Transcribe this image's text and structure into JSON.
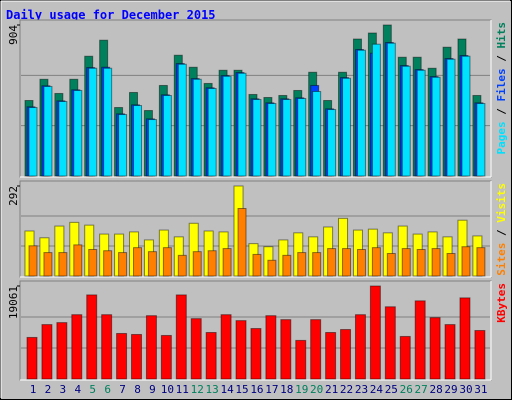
{
  "chart_data": [
    {
      "type": "bar",
      "title": "Daily usage for December 2015",
      "legend_separator": " / ",
      "ylim": [
        0,
        904
      ],
      "yticks": [
        904
      ],
      "series": [
        {
          "name": "Hits",
          "color": "#00805c",
          "values": [
            452,
            579,
            494,
            579,
            717,
            813,
            410,
            500,
            392,
            542,
            723,
            651,
            554,
            633,
            633,
            488,
            470,
            482,
            512,
            621,
            452,
            621,
            820,
            856,
            904,
            711,
            711,
            645,
            771,
            820,
            482
          ]
        },
        {
          "name": "Files",
          "color": "#0040ff",
          "values": [
            414,
            540,
            450,
            516,
            649,
            651,
            372,
            426,
            342,
            486,
            673,
            583,
            528,
            601,
            619,
            462,
            438,
            462,
            468,
            542,
            402,
            589,
            757,
            735,
            799,
            661,
            637,
            595,
            703,
            721,
            438
          ]
        },
        {
          "name": "Pages",
          "color": "#00e0ff",
          "values": [
            410,
            536,
            446,
            512,
            645,
            645,
            368,
            422,
            338,
            482,
            669,
            579,
            524,
            597,
            615,
            458,
            434,
            458,
            464,
            506,
            398,
            585,
            753,
            789,
            795,
            657,
            633,
            591,
            699,
            717,
            434
          ]
        }
      ]
    },
    {
      "type": "bar",
      "legend_separator": " / ",
      "ylim": [
        0,
        292
      ],
      "yticks": [
        292
      ],
      "series": [
        {
          "name": "Visits",
          "color": "#ffff00",
          "values": [
            146,
            124,
            162,
            174,
            165,
            136,
            136,
            143,
            117,
            149,
            127,
            171,
            146,
            143,
            292,
            105,
            95,
            117,
            140,
            127,
            159,
            187,
            149,
            152,
            140,
            162,
            136,
            143,
            127,
            181,
            130
          ]
        },
        {
          "name": "Sites",
          "color": "#ff8000",
          "values": [
            98,
            76,
            76,
            101,
            86,
            82,
            76,
            92,
            79,
            92,
            67,
            79,
            82,
            89,
            219,
            70,
            51,
            67,
            76,
            76,
            89,
            89,
            86,
            92,
            73,
            89,
            86,
            89,
            73,
            95,
            92
          ]
        }
      ]
    },
    {
      "type": "bar",
      "ylim": [
        0,
        19061
      ],
      "yticks": [
        19061
      ],
      "categories": [
        "1",
        "2",
        "3",
        "4",
        "5",
        "6",
        "7",
        "8",
        "9",
        "10",
        "11",
        "12",
        "13",
        "14",
        "15",
        "16",
        "17",
        "18",
        "19",
        "20",
        "21",
        "22",
        "23",
        "24",
        "25",
        "26",
        "27",
        "28",
        "29",
        "30",
        "31"
      ],
      "category_colors": [
        "#000080",
        "#000080",
        "#000080",
        "#000080",
        "#00805c",
        "#00805c",
        "#000080",
        "#000080",
        "#000080",
        "#000080",
        "#000080",
        "#00805c",
        "#00805c",
        "#000080",
        "#000080",
        "#000080",
        "#000080",
        "#000080",
        "#00805c",
        "#00805c",
        "#000080",
        "#000080",
        "#000080",
        "#000080",
        "#000080",
        "#00805c",
        "#00805c",
        "#000080",
        "#000080",
        "#000080",
        "#000080"
      ],
      "series": [
        {
          "name": "KBytes",
          "color": "#ff0000",
          "values": [
            8517,
            11153,
            11559,
            13181,
            17236,
            13181,
            9328,
            9125,
            12978,
            8923,
            17236,
            12370,
            9531,
            13181,
            11965,
            10342,
            12978,
            12167,
            7908,
            12167,
            9531,
            10139,
            13181,
            19061,
            14803,
            8720,
            16019,
            12572,
            11153,
            16628,
            9937
          ]
        }
      ]
    }
  ]
}
